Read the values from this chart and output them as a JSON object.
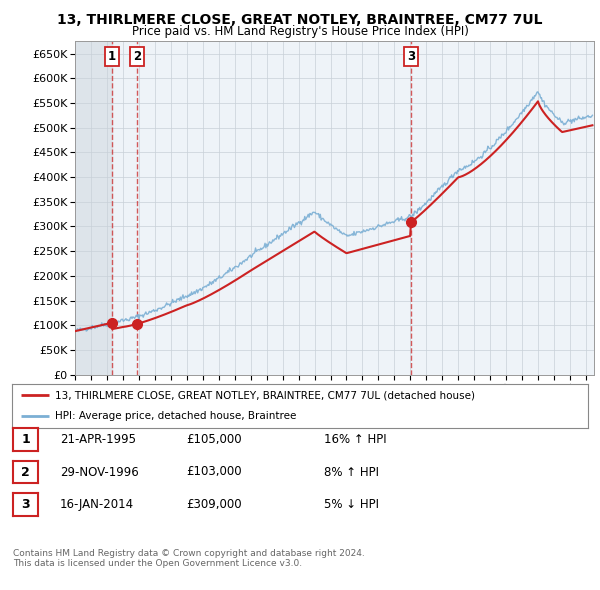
{
  "title": "13, THIRLMERE CLOSE, GREAT NOTLEY, BRAINTREE, CM77 7UL",
  "subtitle": "Price paid vs. HM Land Registry's House Price Index (HPI)",
  "ylim": [
    0,
    675000
  ],
  "yticks": [
    0,
    50000,
    100000,
    150000,
    200000,
    250000,
    300000,
    350000,
    400000,
    450000,
    500000,
    550000,
    600000,
    650000
  ],
  "xlim_start": 1993.0,
  "xlim_end": 2025.5,
  "transactions": [
    {
      "label": "1",
      "date_num": 1995.31,
      "price": 105000,
      "date_str": "21-APR-1995",
      "hpi_pct": "16% ↑ HPI"
    },
    {
      "label": "2",
      "date_num": 1996.91,
      "price": 103000,
      "date_str": "29-NOV-1996",
      "hpi_pct": "8% ↑ HPI"
    },
    {
      "label": "3",
      "date_num": 2014.04,
      "price": 309000,
      "date_str": "16-JAN-2014",
      "hpi_pct": "5% ↓ HPI"
    }
  ],
  "hpi_color": "#7bafd4",
  "price_color": "#cc2222",
  "dashed_line_color": "#cc3333",
  "background_color": "#ffffff",
  "plot_bg_color": "#eef3f8",
  "grid_color": "#c8d0d8",
  "legend_line1": "13, THIRLMERE CLOSE, GREAT NOTLEY, BRAINTREE, CM77 7UL (detached house)",
  "legend_line2": "HPI: Average price, detached house, Braintree",
  "footer1": "Contains HM Land Registry data © Crown copyright and database right 2024.",
  "footer2": "This data is licensed under the Open Government Licence v3.0.",
  "table_rows": [
    [
      "1",
      "21-APR-1995",
      "£105,000",
      "16% ↑ HPI"
    ],
    [
      "2",
      "29-NOV-1996",
      "£103,000",
      "8% ↑ HPI"
    ],
    [
      "3",
      "16-JAN-2014",
      "£309,000",
      "5% ↓ HPI"
    ]
  ]
}
